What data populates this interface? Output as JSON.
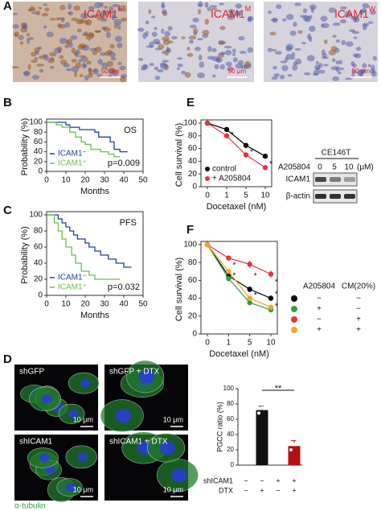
{
  "panel_labels": [
    "A",
    "B",
    "C",
    "D",
    "E",
    "F"
  ],
  "panel_a": {
    "images": [
      {
        "label": "ICAM1",
        "sup": "S",
        "scale": "50 μm"
      },
      {
        "label": "ICAM1",
        "sup": "M",
        "scale": "50 μm"
      },
      {
        "label": "ICAM1",
        "sup": "W",
        "scale": "50 μm"
      }
    ]
  },
  "chart_data": [
    {
      "type": "line",
      "annotation": "OS",
      "p_value": "p=0.009",
      "x_label": "Months",
      "y_label": "Probability (%)",
      "xlim": [
        0,
        50
      ],
      "xticks": [
        0,
        10,
        20,
        30,
        40,
        50
      ],
      "ylim": [
        0,
        100
      ],
      "yticks": [
        0,
        20,
        40,
        60,
        80,
        100
      ],
      "legend": "lower left",
      "series": [
        {
          "name": "ICAM1⁻",
          "color": "#1f3f9a",
          "x": [
            0,
            10,
            10,
            12,
            12,
            17,
            17,
            25,
            25,
            27,
            27,
            33,
            33,
            35,
            35,
            38,
            38,
            42
          ],
          "values": [
            100,
            100,
            95,
            95,
            90,
            90,
            85,
            85,
            80,
            80,
            70,
            70,
            60,
            60,
            45,
            45,
            40,
            40
          ]
        },
        {
          "name": "ICAM1⁺",
          "color": "#6cc04a",
          "x": [
            0,
            5,
            5,
            8,
            8,
            12,
            12,
            15,
            15,
            18,
            18,
            20,
            20,
            23,
            23,
            28,
            28,
            32,
            32,
            35,
            35,
            38
          ],
          "values": [
            100,
            100,
            95,
            95,
            90,
            90,
            80,
            80,
            70,
            70,
            60,
            60,
            55,
            55,
            45,
            45,
            40,
            40,
            35,
            35,
            30,
            30
          ]
        }
      ]
    },
    {
      "type": "line",
      "annotation": "PFS",
      "p_value": "p=0.032",
      "x_label": "Months",
      "y_label": "Probability (%)",
      "xlim": [
        0,
        50
      ],
      "xticks": [
        0,
        10,
        20,
        30,
        40,
        50
      ],
      "ylim": [
        0,
        100
      ],
      "yticks": [
        0,
        20,
        40,
        60,
        80,
        100
      ],
      "legend": "lower left",
      "series": [
        {
          "name": "ICAM1⁻",
          "color": "#1f3f9a",
          "x": [
            0,
            6,
            6,
            8,
            8,
            10,
            10,
            12,
            12,
            14,
            14,
            16,
            16,
            20,
            20,
            22,
            22,
            25,
            25,
            28,
            28,
            32,
            32,
            36,
            36,
            40,
            40,
            44
          ],
          "values": [
            100,
            100,
            95,
            95,
            90,
            90,
            85,
            85,
            80,
            80,
            75,
            75,
            70,
            70,
            65,
            65,
            60,
            60,
            55,
            55,
            50,
            50,
            45,
            45,
            40,
            40,
            35,
            35
          ]
        },
        {
          "name": "ICAM1⁺",
          "color": "#6cc04a",
          "x": [
            0,
            4,
            4,
            6,
            6,
            8,
            8,
            10,
            10,
            13,
            13,
            15,
            15,
            18,
            18,
            22,
            22,
            25,
            25,
            38
          ],
          "values": [
            100,
            100,
            90,
            90,
            80,
            80,
            70,
            70,
            60,
            60,
            50,
            50,
            40,
            40,
            30,
            30,
            25,
            25,
            20,
            20
          ]
        }
      ]
    },
    {
      "type": "line",
      "x_label": "Docetaxel (nM)",
      "y_label": "Cell survival (%)",
      "categories": [
        "0",
        "1",
        "5",
        "10"
      ],
      "ylim": [
        0,
        100
      ],
      "yticks": [
        0,
        20,
        40,
        60,
        80,
        100
      ],
      "legend": "lower left",
      "significance": [
        null,
        "*",
        "*",
        "*"
      ],
      "series": [
        {
          "name": "control",
          "color": "#000000",
          "values": [
            100,
            90,
            65,
            48
          ],
          "errors": [
            0,
            3,
            4,
            3
          ]
        },
        {
          "name": "+ A205804",
          "color": "#e8323c",
          "values": [
            100,
            80,
            50,
            30
          ],
          "errors": [
            0,
            2,
            4,
            3
          ]
        }
      ]
    },
    {
      "type": "line",
      "x_label": "Docetaxel (nM)",
      "y_label": "Cell survival (%)",
      "categories": [
        "0",
        "1",
        "5",
        "10"
      ],
      "ylim": [
        0,
        100
      ],
      "yticks": [
        0,
        20,
        40,
        60,
        80,
        100
      ],
      "significance": [
        null,
        [
          "*",
          "*"
        ],
        [
          "*",
          "*"
        ],
        [
          "*",
          "*",
          "*"
        ]
      ],
      "series": [
        {
          "color": "#000000",
          "values": [
            100,
            65,
            50,
            40
          ],
          "errors": [
            0,
            3,
            3,
            3
          ]
        },
        {
          "color": "#2ca24a",
          "values": [
            100,
            62,
            35,
            27
          ],
          "errors": [
            0,
            3,
            3,
            2
          ]
        },
        {
          "color": "#e8323c",
          "values": [
            100,
            85,
            78,
            67
          ],
          "errors": [
            0,
            3,
            4,
            4
          ]
        },
        {
          "color": "#f5a623",
          "values": [
            100,
            70,
            40,
            30
          ],
          "errors": [
            0,
            3,
            3,
            3
          ]
        }
      ]
    },
    {
      "type": "bar",
      "y_label": "PGCC ratio (%)",
      "ylim": [
        0,
        100
      ],
      "yticks": [
        0,
        20,
        40,
        60,
        80,
        100
      ],
      "significance": "**",
      "values": [
        null,
        72,
        null,
        25
      ],
      "errors": [
        null,
        5,
        null,
        7
      ],
      "colors": [
        null,
        "#111111",
        null,
        "#b01010"
      ],
      "points": [
        null,
        [
          68,
          75,
          77
        ],
        null,
        [
          20,
          27,
          31
        ]
      ]
    }
  ],
  "panel_e_blot": {
    "cell_line": "CE146T",
    "treatment": "A205804",
    "doses": [
      "0",
      "5",
      "10"
    ],
    "unit": "(μM)",
    "bands": [
      "ICAM1",
      "β-actin"
    ]
  },
  "panel_f_table": {
    "headers": [
      "A205804",
      "CM(20%)"
    ],
    "rows": [
      [
        "−",
        "−"
      ],
      [
        "+",
        "−"
      ],
      [
        "−",
        "+"
      ],
      [
        "+",
        "+"
      ]
    ]
  },
  "panel_d": {
    "images": [
      {
        "label": "shGFP",
        "scale": "10 μm"
      },
      {
        "label": "shGFP + DTX",
        "scale": "10 μm"
      },
      {
        "label": "shICAM1",
        "scale": "10 μm"
      },
      {
        "label": "shICAM1 + DTX",
        "scale": "10 μm"
      }
    ],
    "stain": "α-tubulin",
    "table": [
      {
        "label": "shICAM1",
        "cells": [
          "−",
          "−",
          "+",
          "+"
        ]
      },
      {
        "label": "DTX",
        "cells": [
          "−",
          "+",
          "−",
          "+"
        ]
      }
    ]
  }
}
